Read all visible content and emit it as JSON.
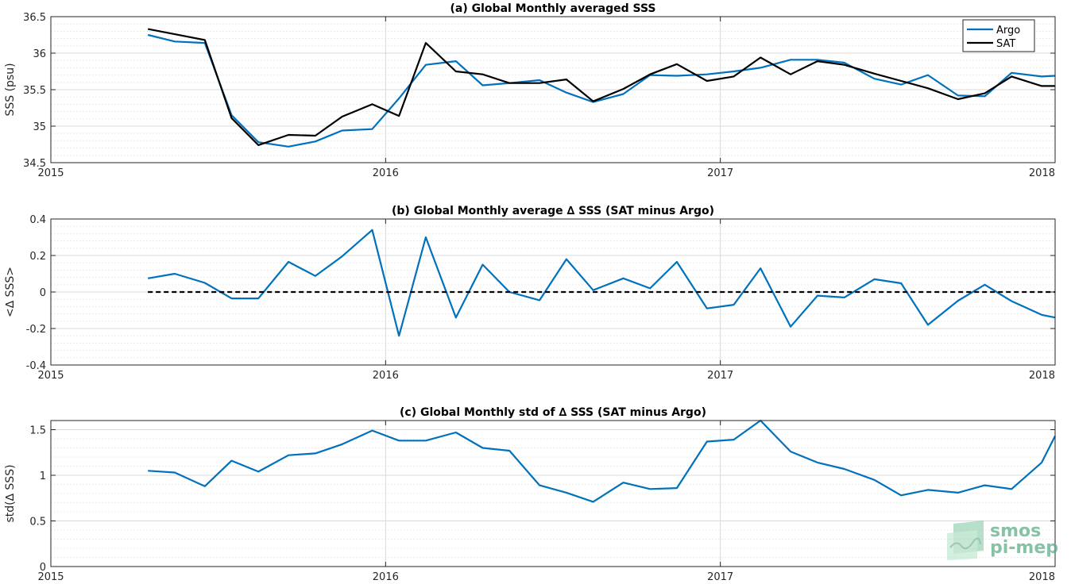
{
  "colors": {
    "argo": "#0072BD",
    "sat": "#000000",
    "axis": "#262626",
    "grid": "#d9d9d9",
    "logo": "#5fae8a"
  },
  "logo": {
    "line1": "smos",
    "line2": "pi-mep"
  },
  "chart_data": [
    {
      "type": "line",
      "title": "(a) Global Monthly averaged SSS",
      "xlabel": "",
      "ylabel": "SSS (psu)",
      "xlim": [
        2015,
        2018
      ],
      "ylim": [
        34.5,
        36.5
      ],
      "xticks": [
        2015,
        2016,
        2017,
        2018
      ],
      "yticks": [
        34.5,
        35,
        35.5,
        36,
        36.5
      ],
      "grid": true,
      "legend_position": "top-right",
      "x": [
        2015.29,
        2015.37,
        2015.46,
        2015.54,
        2015.62,
        2015.71,
        2015.79,
        2015.87,
        2015.96,
        2016.04,
        2016.12,
        2016.21,
        2016.29,
        2016.37,
        2016.46,
        2016.54,
        2016.62,
        2016.71,
        2016.79,
        2016.87,
        2016.96,
        2017.04,
        2017.12,
        2017.21,
        2017.29,
        2017.37,
        2017.46,
        2017.54,
        2017.62,
        2017.71,
        2017.79,
        2017.87,
        2017.96,
        2018.0
      ],
      "series": [
        {
          "name": "Argo",
          "color": "#0072BD",
          "dashed": false,
          "values": [
            36.25,
            36.16,
            36.14,
            35.15,
            34.78,
            34.72,
            34.79,
            34.94,
            34.96,
            35.38,
            35.84,
            35.89,
            35.56,
            35.59,
            35.63,
            35.46,
            35.33,
            35.44,
            35.7,
            35.69,
            35.71,
            35.75,
            35.8,
            35.91,
            35.91,
            35.87,
            35.65,
            35.57,
            35.7,
            35.42,
            35.41,
            35.73,
            35.68,
            35.69
          ]
        },
        {
          "name": "SAT",
          "color": "#000000",
          "dashed": false,
          "values": [
            36.33,
            36.26,
            36.18,
            35.11,
            34.74,
            34.88,
            34.87,
            35.13,
            35.3,
            35.14,
            36.14,
            35.75,
            35.71,
            35.59,
            35.59,
            35.64,
            35.34,
            35.51,
            35.71,
            35.85,
            35.62,
            35.68,
            35.94,
            35.71,
            35.89,
            35.84,
            35.72,
            35.62,
            35.52,
            35.37,
            35.45,
            35.68,
            35.55,
            35.55
          ]
        }
      ]
    },
    {
      "type": "line",
      "title": "(b) Global Monthly average ∆ SSS (SAT minus Argo)",
      "xlabel": "",
      "ylabel": "<∆ SSS>",
      "xlim": [
        2015,
        2018
      ],
      "ylim": [
        -0.4,
        0.4
      ],
      "xticks": [
        2015,
        2016,
        2017,
        2018
      ],
      "yticks": [
        -0.4,
        -0.2,
        0,
        0.2,
        0.4
      ],
      "grid": true,
      "x": [
        2015.29,
        2015.37,
        2015.46,
        2015.54,
        2015.62,
        2015.71,
        2015.79,
        2015.87,
        2015.96,
        2016.04,
        2016.12,
        2016.21,
        2016.29,
        2016.37,
        2016.46,
        2016.54,
        2016.62,
        2016.71,
        2016.79,
        2016.87,
        2016.96,
        2017.04,
        2017.12,
        2017.21,
        2017.29,
        2017.37,
        2017.46,
        2017.54,
        2017.62,
        2017.71,
        2017.79,
        2017.87,
        2017.96,
        2018.0
      ],
      "series": [
        {
          "color": "#0072BD",
          "dashed": false,
          "values": [
            0.075,
            0.1,
            0.05,
            -0.035,
            -0.035,
            0.165,
            0.088,
            0.195,
            0.34,
            -0.24,
            0.3,
            -0.14,
            0.15,
            0.0,
            -0.045,
            0.18,
            0.01,
            0.075,
            0.02,
            0.165,
            -0.09,
            -0.07,
            0.13,
            -0.19,
            -0.02,
            -0.03,
            0.07,
            0.048,
            -0.18,
            -0.048,
            0.04,
            -0.05,
            -0.125,
            -0.14
          ]
        },
        {
          "color": "#000000",
          "dashed": true,
          "x": [
            2015.29,
            2018.0
          ],
          "values": [
            0,
            0
          ]
        }
      ]
    },
    {
      "type": "line",
      "title": "(c) Global Monthly std of ∆ SSS (SAT minus Argo)",
      "xlabel": "",
      "ylabel": "std(∆ SSS)",
      "xlim": [
        2015,
        2018
      ],
      "ylim": [
        0,
        1.6
      ],
      "xticks": [
        2015,
        2016,
        2017,
        2018
      ],
      "yticks": [
        0,
        0.5,
        1,
        1.5
      ],
      "grid": true,
      "x": [
        2015.29,
        2015.37,
        2015.46,
        2015.54,
        2015.62,
        2015.71,
        2015.79,
        2015.87,
        2015.96,
        2016.04,
        2016.12,
        2016.21,
        2016.29,
        2016.37,
        2016.46,
        2016.54,
        2016.62,
        2016.71,
        2016.79,
        2016.87,
        2016.96,
        2017.04,
        2017.12,
        2017.21,
        2017.29,
        2017.37,
        2017.46,
        2017.54,
        2017.62,
        2017.71,
        2017.79,
        2017.87,
        2017.96,
        2018.0
      ],
      "series": [
        {
          "color": "#0072BD",
          "dashed": false,
          "values": [
            1.05,
            1.03,
            0.88,
            1.16,
            1.04,
            1.22,
            1.24,
            1.34,
            1.49,
            1.38,
            1.38,
            1.47,
            1.3,
            1.27,
            0.89,
            0.81,
            0.71,
            0.92,
            0.85,
            0.86,
            1.37,
            1.39,
            1.6,
            1.26,
            1.14,
            1.07,
            0.95,
            0.78,
            0.84,
            0.81,
            0.89,
            0.85,
            1.14,
            1.43
          ]
        }
      ]
    }
  ]
}
